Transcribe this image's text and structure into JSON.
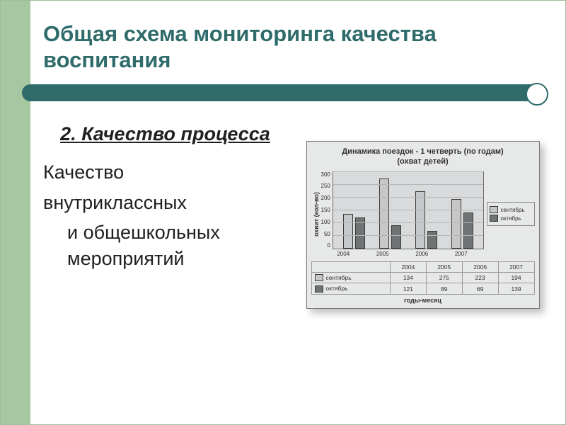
{
  "slide": {
    "title": "Общая схема мониторинга качества воспитания",
    "title_color": "#2f6b6b",
    "accent_color": "#2f6b6b",
    "rail_color": "#a7c7a2",
    "background": "#ffffff"
  },
  "text_block": {
    "subheading": "2. Качество процесса",
    "lines": [
      "Качество",
      "внутриклассных",
      " и общешкольных мероприятий"
    ],
    "font_size_pt": 20,
    "text_color": "#202020"
  },
  "chart": {
    "type": "bar",
    "title_line1": "Динамика поездок - 1 четверть  (по годам)",
    "title_line2": "(охват детей)",
    "ylabel": "охват (кол-во)",
    "xlabel": "годы-месяц",
    "categories": [
      "2004",
      "2005",
      "2006",
      "2007"
    ],
    "series": [
      {
        "name": "сентябрь",
        "color": "#c6c7c8",
        "values": [
          134,
          275,
          223,
          194
        ]
      },
      {
        "name": "октябрь",
        "color": "#6f7374",
        "values": [
          121,
          89,
          69,
          139
        ]
      }
    ],
    "ylim": [
      0,
      300
    ],
    "ytick_step": 50,
    "yticks": [
      300,
      250,
      200,
      150,
      100,
      50,
      0
    ],
    "plot_bg": "#d9dadb",
    "grid_color": "#b5b6b7",
    "card_bg": "#e7e8e8",
    "border_color": "#6b6b6b",
    "bar_border": "#3a3a3a"
  }
}
